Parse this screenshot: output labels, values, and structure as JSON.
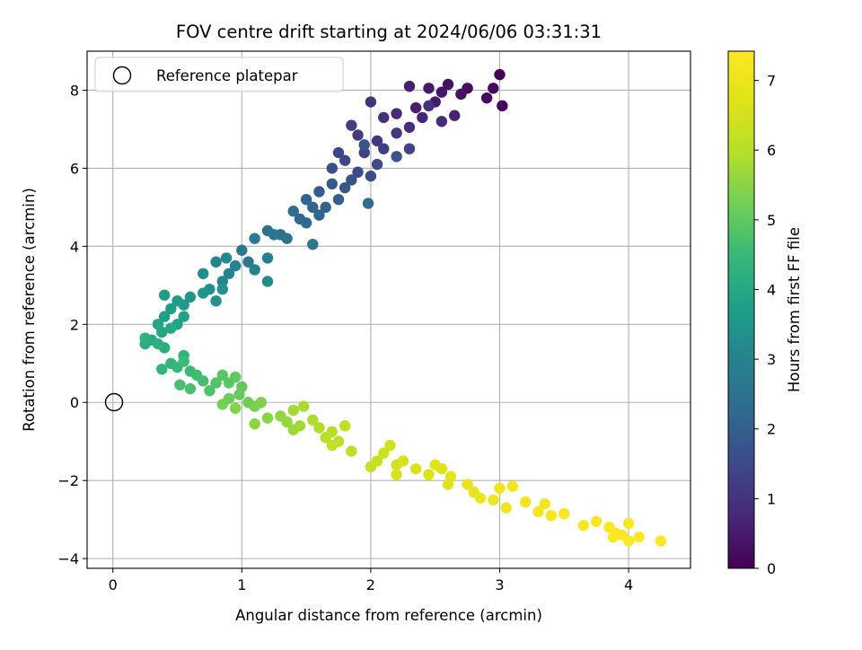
{
  "chart_data": {
    "type": "scatter",
    "title": "FOV centre drift starting at 2024/06/06 03:31:31",
    "xlabel": "Angular distance from reference (arcmin)",
    "ylabel": "Rotation from reference (arcmin)",
    "xlim": [
      -0.2,
      4.48
    ],
    "ylim": [
      -4.25,
      9.0
    ],
    "xticks": [
      0,
      1,
      2,
      3,
      4
    ],
    "yticks": [
      -4,
      -2,
      0,
      2,
      4,
      6,
      8
    ],
    "grid": true,
    "legend": {
      "placement": "top-left",
      "entries": [
        {
          "label": "Reference platepar",
          "marker": "open-circle"
        }
      ]
    },
    "reference_point": {
      "x": 0,
      "y": 0
    },
    "colorbar": {
      "label": "Hours from first FF file",
      "range": [
        0,
        7.42
      ],
      "ticks": [
        0,
        1,
        2,
        3,
        4,
        5,
        6,
        7
      ],
      "colormap": "viridis"
    },
    "series": [
      {
        "points": [
          {
            "x": 3.0,
            "y": 8.4,
            "c": 0.05
          },
          {
            "x": 3.02,
            "y": 7.6,
            "c": 0.1
          },
          {
            "x": 2.95,
            "y": 8.05,
            "c": 0.15
          },
          {
            "x": 2.9,
            "y": 7.8,
            "c": 0.2
          },
          {
            "x": 2.75,
            "y": 8.05,
            "c": 0.25
          },
          {
            "x": 2.7,
            "y": 7.9,
            "c": 0.3
          },
          {
            "x": 2.6,
            "y": 8.15,
            "c": 0.35
          },
          {
            "x": 2.55,
            "y": 7.95,
            "c": 0.4
          },
          {
            "x": 2.5,
            "y": 7.7,
            "c": 0.45
          },
          {
            "x": 2.45,
            "y": 8.05,
            "c": 0.5
          },
          {
            "x": 2.35,
            "y": 7.55,
            "c": 0.55
          },
          {
            "x": 2.3,
            "y": 8.1,
            "c": 0.6
          },
          {
            "x": 2.65,
            "y": 7.35,
            "c": 0.65
          },
          {
            "x": 2.4,
            "y": 7.3,
            "c": 0.7
          },
          {
            "x": 2.2,
            "y": 7.4,
            "c": 0.75
          },
          {
            "x": 2.55,
            "y": 7.2,
            "c": 0.8
          },
          {
            "x": 2.3,
            "y": 7.05,
            "c": 0.85
          },
          {
            "x": 2.1,
            "y": 7.3,
            "c": 0.9
          },
          {
            "x": 2.45,
            "y": 7.6,
            "c": 0.95
          },
          {
            "x": 2.0,
            "y": 7.7,
            "c": 1.0
          },
          {
            "x": 2.2,
            "y": 6.9,
            "c": 1.05
          },
          {
            "x": 2.05,
            "y": 6.7,
            "c": 1.1
          },
          {
            "x": 1.9,
            "y": 6.85,
            "c": 1.15
          },
          {
            "x": 1.85,
            "y": 7.1,
            "c": 1.2
          },
          {
            "x": 2.1,
            "y": 6.5,
            "c": 1.25
          },
          {
            "x": 1.95,
            "y": 6.4,
            "c": 1.3
          },
          {
            "x": 2.3,
            "y": 6.5,
            "c": 1.35
          },
          {
            "x": 1.8,
            "y": 6.2,
            "c": 1.4
          },
          {
            "x": 1.75,
            "y": 6.4,
            "c": 1.45
          },
          {
            "x": 2.05,
            "y": 6.1,
            "c": 1.5
          },
          {
            "x": 1.9,
            "y": 5.9,
            "c": 1.55
          },
          {
            "x": 2.0,
            "y": 5.8,
            "c": 1.6
          },
          {
            "x": 1.7,
            "y": 6.0,
            "c": 1.65
          },
          {
            "x": 1.85,
            "y": 5.7,
            "c": 1.7
          },
          {
            "x": 1.95,
            "y": 6.6,
            "c": 1.75
          },
          {
            "x": 2.2,
            "y": 6.3,
            "c": 1.8
          },
          {
            "x": 1.8,
            "y": 5.5,
            "c": 1.85
          },
          {
            "x": 1.7,
            "y": 5.6,
            "c": 1.9
          },
          {
            "x": 1.6,
            "y": 5.4,
            "c": 1.95
          },
          {
            "x": 1.75,
            "y": 5.2,
            "c": 2.0
          },
          {
            "x": 1.55,
            "y": 5.0,
            "c": 2.05
          },
          {
            "x": 1.65,
            "y": 5.0,
            "c": 2.1
          },
          {
            "x": 1.5,
            "y": 5.2,
            "c": 2.15
          },
          {
            "x": 1.6,
            "y": 4.8,
            "c": 2.2
          },
          {
            "x": 1.45,
            "y": 4.7,
            "c": 2.25
          },
          {
            "x": 1.5,
            "y": 4.6,
            "c": 2.3
          },
          {
            "x": 1.4,
            "y": 4.9,
            "c": 2.35
          },
          {
            "x": 1.98,
            "y": 5.1,
            "c": 2.4
          },
          {
            "x": 1.3,
            "y": 4.3,
            "c": 2.45
          },
          {
            "x": 1.35,
            "y": 4.2,
            "c": 2.5
          },
          {
            "x": 1.2,
            "y": 4.4,
            "c": 2.55
          },
          {
            "x": 1.25,
            "y": 4.3,
            "c": 2.6
          },
          {
            "x": 1.55,
            "y": 4.05,
            "c": 2.65
          },
          {
            "x": 1.1,
            "y": 4.2,
            "c": 2.7
          },
          {
            "x": 1.0,
            "y": 3.9,
            "c": 2.75
          },
          {
            "x": 1.05,
            "y": 3.6,
            "c": 2.8
          },
          {
            "x": 1.2,
            "y": 3.7,
            "c": 2.85
          },
          {
            "x": 0.95,
            "y": 3.5,
            "c": 2.9
          },
          {
            "x": 0.9,
            "y": 3.3,
            "c": 2.95
          },
          {
            "x": 1.1,
            "y": 3.4,
            "c": 3.0
          },
          {
            "x": 0.85,
            "y": 3.1,
            "c": 3.05
          },
          {
            "x": 0.8,
            "y": 3.6,
            "c": 3.1
          },
          {
            "x": 0.88,
            "y": 3.7,
            "c": 3.15
          },
          {
            "x": 1.2,
            "y": 3.1,
            "c": 3.2
          },
          {
            "x": 0.7,
            "y": 3.3,
            "c": 3.25
          },
          {
            "x": 0.75,
            "y": 2.9,
            "c": 3.3
          },
          {
            "x": 0.85,
            "y": 2.9,
            "c": 3.35
          },
          {
            "x": 0.8,
            "y": 2.6,
            "c": 3.4
          },
          {
            "x": 0.6,
            "y": 2.7,
            "c": 3.45
          },
          {
            "x": 0.7,
            "y": 2.8,
            "c": 3.5
          },
          {
            "x": 0.55,
            "y": 2.5,
            "c": 3.55
          },
          {
            "x": 0.5,
            "y": 2.6,
            "c": 3.6
          },
          {
            "x": 0.4,
            "y": 2.75,
            "c": 3.65
          },
          {
            "x": 0.45,
            "y": 2.4,
            "c": 3.7
          },
          {
            "x": 0.4,
            "y": 2.2,
            "c": 3.75
          },
          {
            "x": 0.55,
            "y": 2.2,
            "c": 3.8
          },
          {
            "x": 0.5,
            "y": 2.0,
            "c": 3.85
          },
          {
            "x": 0.35,
            "y": 2.0,
            "c": 3.9
          },
          {
            "x": 0.38,
            "y": 1.8,
            "c": 3.95
          },
          {
            "x": 0.45,
            "y": 1.9,
            "c": 4.0
          },
          {
            "x": 0.3,
            "y": 1.6,
            "c": 4.05
          },
          {
            "x": 0.25,
            "y": 1.5,
            "c": 4.1
          },
          {
            "x": 0.4,
            "y": 1.4,
            "c": 4.15
          },
          {
            "x": 0.35,
            "y": 1.5,
            "c": 4.2
          },
          {
            "x": 0.25,
            "y": 1.65,
            "c": 4.25
          },
          {
            "x": 0.55,
            "y": 1.2,
            "c": 4.3
          },
          {
            "x": 0.45,
            "y": 1.0,
            "c": 4.35
          },
          {
            "x": 0.38,
            "y": 0.85,
            "c": 4.4
          },
          {
            "x": 0.5,
            "y": 0.9,
            "c": 4.45
          },
          {
            "x": 0.6,
            "y": 0.8,
            "c": 4.5
          },
          {
            "x": 0.55,
            "y": 1.05,
            "c": 4.55
          },
          {
            "x": 0.65,
            "y": 0.7,
            "c": 4.6
          },
          {
            "x": 0.7,
            "y": 0.55,
            "c": 4.65
          },
          {
            "x": 0.52,
            "y": 0.45,
            "c": 4.7
          },
          {
            "x": 0.6,
            "y": 0.35,
            "c": 4.75
          },
          {
            "x": 0.75,
            "y": 0.3,
            "c": 4.8
          },
          {
            "x": 0.8,
            "y": 0.5,
            "c": 4.85
          },
          {
            "x": 0.85,
            "y": 0.7,
            "c": 4.9
          },
          {
            "x": 0.9,
            "y": 0.5,
            "c": 4.95
          },
          {
            "x": 0.95,
            "y": 0.65,
            "c": 5.0
          },
          {
            "x": 1.0,
            "y": 0.4,
            "c": 5.05
          },
          {
            "x": 0.98,
            "y": 0.2,
            "c": 5.1
          },
          {
            "x": 0.9,
            "y": 0.1,
            "c": 5.15
          },
          {
            "x": 1.05,
            "y": 0.0,
            "c": 5.2
          },
          {
            "x": 0.85,
            "y": -0.05,
            "c": 5.25
          },
          {
            "x": 1.1,
            "y": -0.1,
            "c": 5.3
          },
          {
            "x": 1.15,
            "y": 0.0,
            "c": 5.35
          },
          {
            "x": 0.95,
            "y": -0.15,
            "c": 5.4
          },
          {
            "x": 1.2,
            "y": -0.4,
            "c": 5.45
          },
          {
            "x": 1.1,
            "y": -0.55,
            "c": 5.5
          },
          {
            "x": 1.3,
            "y": -0.35,
            "c": 5.55
          },
          {
            "x": 1.35,
            "y": -0.5,
            "c": 5.6
          },
          {
            "x": 1.4,
            "y": -0.7,
            "c": 5.65
          },
          {
            "x": 1.45,
            "y": -0.6,
            "c": 5.7
          },
          {
            "x": 1.4,
            "y": -0.2,
            "c": 5.75
          },
          {
            "x": 1.48,
            "y": -0.1,
            "c": 5.8
          },
          {
            "x": 1.55,
            "y": -0.45,
            "c": 5.85
          },
          {
            "x": 1.6,
            "y": -0.65,
            "c": 5.9
          },
          {
            "x": 1.65,
            "y": -0.9,
            "c": 5.95
          },
          {
            "x": 1.7,
            "y": -0.75,
            "c": 6.0
          },
          {
            "x": 1.75,
            "y": -1.0,
            "c": 6.05
          },
          {
            "x": 1.8,
            "y": -0.6,
            "c": 6.1
          },
          {
            "x": 1.85,
            "y": -1.25,
            "c": 6.15
          },
          {
            "x": 1.7,
            "y": -1.1,
            "c": 6.2
          },
          {
            "x": 2.0,
            "y": -1.65,
            "c": 6.25
          },
          {
            "x": 2.05,
            "y": -1.5,
            "c": 6.3
          },
          {
            "x": 2.1,
            "y": -1.3,
            "c": 6.35
          },
          {
            "x": 2.15,
            "y": -1.1,
            "c": 6.4
          },
          {
            "x": 2.2,
            "y": -1.6,
            "c": 6.45
          },
          {
            "x": 2.2,
            "y": -1.85,
            "c": 6.5
          },
          {
            "x": 2.25,
            "y": -1.5,
            "c": 6.55
          },
          {
            "x": 2.35,
            "y": -1.7,
            "c": 6.6
          },
          {
            "x": 2.45,
            "y": -1.85,
            "c": 6.65
          },
          {
            "x": 2.5,
            "y": -1.6,
            "c": 6.7
          },
          {
            "x": 2.55,
            "y": -1.7,
            "c": 6.75
          },
          {
            "x": 2.6,
            "y": -2.1,
            "c": 6.8
          },
          {
            "x": 2.62,
            "y": -1.9,
            "c": 6.85
          },
          {
            "x": 2.8,
            "y": -2.3,
            "c": 6.9
          },
          {
            "x": 2.75,
            "y": -2.1,
            "c": 6.95
          },
          {
            "x": 2.85,
            "y": -2.45,
            "c": 7.0
          },
          {
            "x": 2.95,
            "y": -2.5,
            "c": 7.05
          },
          {
            "x": 3.05,
            "y": -2.7,
            "c": 7.1
          },
          {
            "x": 3.0,
            "y": -2.2,
            "c": 7.12
          },
          {
            "x": 3.1,
            "y": -2.15,
            "c": 7.15
          },
          {
            "x": 3.2,
            "y": -2.55,
            "c": 7.18
          },
          {
            "x": 3.3,
            "y": -2.8,
            "c": 7.2
          },
          {
            "x": 3.35,
            "y": -2.6,
            "c": 7.22
          },
          {
            "x": 3.4,
            "y": -2.9,
            "c": 7.25
          },
          {
            "x": 3.5,
            "y": -2.85,
            "c": 7.28
          },
          {
            "x": 3.65,
            "y": -3.15,
            "c": 7.3
          },
          {
            "x": 3.75,
            "y": -3.05,
            "c": 7.32
          },
          {
            "x": 3.85,
            "y": -3.2,
            "c": 7.34
          },
          {
            "x": 3.9,
            "y": -3.35,
            "c": 7.36
          },
          {
            "x": 3.95,
            "y": -3.4,
            "c": 7.37
          },
          {
            "x": 3.88,
            "y": -3.45,
            "c": 7.38
          },
          {
            "x": 4.0,
            "y": -3.55,
            "c": 7.39
          },
          {
            "x": 4.0,
            "y": -3.1,
            "c": 7.4
          },
          {
            "x": 4.08,
            "y": -3.45,
            "c": 7.41
          },
          {
            "x": 4.25,
            "y": -3.55,
            "c": 7.42
          }
        ]
      }
    ]
  }
}
